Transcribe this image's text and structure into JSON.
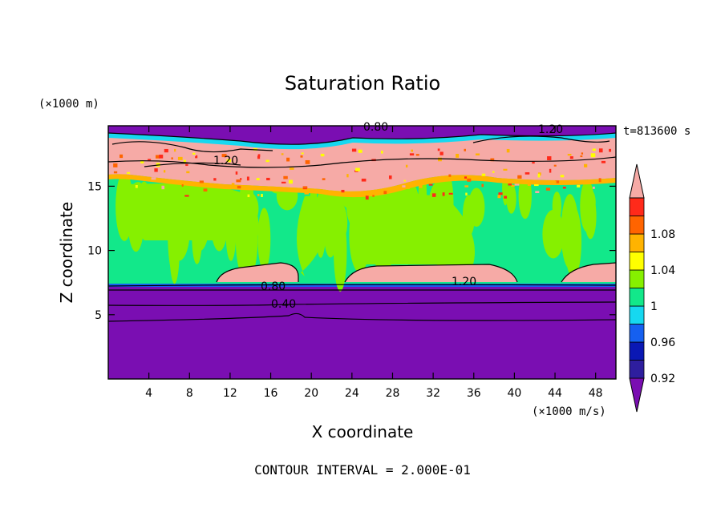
{
  "chart_data": {
    "type": "heatmap",
    "title": "Saturation Ratio",
    "xlabel": "X coordinate",
    "ylabel": "Z coordinate",
    "x_unit": "(×1000 m/s)",
    "y_unit": "(×1000 m)",
    "time_label": "t=813600 s",
    "footer": "CONTOUR INTERVAL = 2.000E-01",
    "xlim": [
      0,
      50
    ],
    "ylim": [
      0,
      19.7
    ],
    "xticks": [
      4,
      8,
      12,
      16,
      20,
      24,
      28,
      32,
      36,
      40,
      44,
      48
    ],
    "yticks": [
      5,
      10,
      15
    ],
    "colorbar": {
      "levels": [
        0.92,
        0.94,
        0.96,
        0.98,
        1.0,
        1.02,
        1.04,
        1.06,
        1.08,
        1.1
      ],
      "tick_labels": [
        "0.92",
        "0.96",
        "1",
        "1.04",
        "1.08"
      ],
      "colors": [
        "#7a0eb2",
        "#2e1e9e",
        "#0a18b4",
        "#1560f0",
        "#16d8f0",
        "#12e88a",
        "#86f000",
        "#ffff00",
        "#ffb300",
        "#ff6400",
        "#ff2a1a",
        "#f6aaa6"
      ]
    },
    "regions": [
      {
        "name": "lower dry layer",
        "x": [
          0,
          50
        ],
        "z": [
          0,
          7.3
        ],
        "value": 0.4
      },
      {
        "name": "near-saturated middle layer",
        "x": [
          0,
          50
        ],
        "z": [
          7.3,
          16.2
        ],
        "value": 0.99
      },
      {
        "name": "supersaturated lens A",
        "x": [
          11,
          18.5
        ],
        "z": [
          7.5,
          9.0
        ],
        "value": 1.2
      },
      {
        "name": "supersaturated lens B",
        "x": [
          23.5,
          40
        ],
        "z": [
          7.4,
          9.0
        ],
        "value": 1.2
      },
      {
        "name": "upper supersaturated layer",
        "x": [
          0,
          50
        ],
        "z": [
          16.2,
          19.0
        ],
        "value": 1.2
      },
      {
        "name": "dry cap",
        "x": [
          0,
          50
        ],
        "z": [
          19.0,
          19.7
        ],
        "value": 0.8
      }
    ],
    "contour_labels": [
      {
        "text": "0.40",
        "x": 17.5,
        "z": 6.0
      },
      {
        "text": "0.80",
        "x": 16.5,
        "z": 7.3
      },
      {
        "text": "1.20",
        "x": 34.5,
        "z": 7.9
      },
      {
        "text": "1.20",
        "x": 11.5,
        "z": 17.2
      },
      {
        "text": "0.80",
        "x": 26.5,
        "z": 19.6
      },
      {
        "text": "1.20",
        "x": 44.5,
        "z": 19.6
      }
    ]
  }
}
